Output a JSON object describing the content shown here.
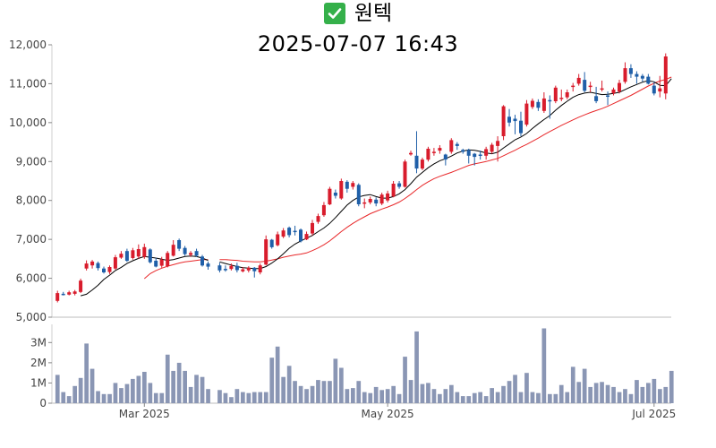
{
  "header": {
    "icon": "check-mark-icon",
    "title": "원텍",
    "subtitle": "2025-07-07 16:43"
  },
  "colors": {
    "up": "#d81c2c",
    "down": "#1f5fa8",
    "ma_short": "#000000",
    "ma_long": "#e8282a",
    "volume": "#8a96b4",
    "check": "#35b04a"
  },
  "chart_data": [
    {
      "type": "candlestick",
      "title": "",
      "xlabel": "",
      "ylabel": "",
      "ylim": [
        5000,
        12000
      ],
      "y_ticks": [
        "5,000",
        "6,000",
        "7,000",
        "8,000",
        "9,000",
        "10,000",
        "11,000",
        "12,000"
      ],
      "x_ticks": [
        "Mar 2025",
        "May 2025",
        "Jul 2025"
      ],
      "grid": false,
      "ohlc": [
        [
          5420,
          5620,
          5380,
          5680
        ],
        [
          5600,
          5590,
          5560,
          5650
        ],
        [
          5580,
          5640,
          5560,
          5680
        ],
        [
          5600,
          5660,
          5560,
          5700
        ],
        [
          5650,
          5940,
          5620,
          5990
        ],
        [
          6250,
          6380,
          6200,
          6460
        ],
        [
          6330,
          6430,
          6250,
          6470
        ],
        [
          6390,
          6260,
          6200,
          6430
        ],
        [
          6250,
          6150,
          6120,
          6300
        ],
        [
          6160,
          6290,
          6110,
          6330
        ],
        [
          6250,
          6540,
          6220,
          6600
        ],
        [
          6530,
          6630,
          6500,
          6700
        ],
        [
          6700,
          6450,
          6420,
          6760
        ],
        [
          6520,
          6720,
          6480,
          6780
        ],
        [
          6560,
          6750,
          6500,
          6870
        ],
        [
          6550,
          6800,
          6500,
          6890
        ],
        [
          6740,
          6410,
          6380,
          6770
        ],
        [
          6450,
          6300,
          6280,
          6530
        ],
        [
          6320,
          6480,
          6270,
          6550
        ],
        [
          6310,
          6650,
          6280,
          6700
        ],
        [
          6580,
          6860,
          6560,
          6980
        ],
        [
          6980,
          6760,
          6700,
          7020
        ],
        [
          6780,
          6620,
          6580,
          6830
        ],
        [
          6600,
          6650,
          6550,
          6700
        ],
        [
          6700,
          6580,
          6550,
          6760
        ],
        [
          6560,
          6330,
          6300,
          6600
        ],
        [
          6380,
          6300,
          6220,
          6430
        ],
        [
          6330,
          6200,
          6150,
          6400
        ],
        [
          6240,
          6230,
          6170,
          6330
        ],
        [
          6240,
          6320,
          6200,
          6380
        ],
        [
          6320,
          6210,
          6150,
          6400
        ],
        [
          6180,
          6230,
          6150,
          6290
        ],
        [
          6200,
          6270,
          6150,
          6310
        ],
        [
          6270,
          6180,
          6020,
          6290
        ],
        [
          6150,
          6330,
          6100,
          6380
        ],
        [
          6350,
          7000,
          6330,
          7100
        ],
        [
          6990,
          6800,
          6760,
          7010
        ],
        [
          6850,
          7130,
          6820,
          7200
        ],
        [
          7070,
          7230,
          7030,
          7290
        ],
        [
          7300,
          7110,
          7050,
          7330
        ],
        [
          7220,
          7200,
          7100,
          7350
        ],
        [
          7250,
          6950,
          6920,
          7280
        ],
        [
          7000,
          7140,
          6980,
          7200
        ],
        [
          7150,
          7420,
          7100,
          7500
        ],
        [
          7450,
          7600,
          7400,
          7660
        ],
        [
          7620,
          7880,
          7580,
          7960
        ],
        [
          7900,
          8300,
          7880,
          8350
        ],
        [
          8200,
          8120,
          8050,
          8280
        ],
        [
          8050,
          8500,
          8020,
          8560
        ],
        [
          8480,
          8300,
          8200,
          8520
        ],
        [
          8350,
          8450,
          8280,
          8500
        ],
        [
          8400,
          7900,
          7850,
          8440
        ],
        [
          7950,
          7950,
          7800,
          8050
        ],
        [
          7950,
          8040,
          7900,
          8100
        ],
        [
          8020,
          7920,
          7850,
          8080
        ],
        [
          7920,
          8150,
          7880,
          8200
        ],
        [
          8000,
          8180,
          7950,
          8250
        ],
        [
          8100,
          8430,
          8080,
          8500
        ],
        [
          8440,
          8350,
          8300,
          8500
        ],
        [
          8350,
          9000,
          8330,
          9050
        ],
        [
          9180,
          9220,
          9150,
          9280
        ],
        [
          9150,
          8820,
          8700,
          9780
        ],
        [
          8820,
          9050,
          8780,
          9100
        ],
        [
          9050,
          9330,
          9000,
          9380
        ],
        [
          9250,
          9250,
          9150,
          9350
        ],
        [
          9280,
          9350,
          9200,
          9420
        ],
        [
          9180,
          9050,
          8900,
          9200
        ],
        [
          9250,
          9550,
          9200,
          9600
        ],
        [
          9450,
          9400,
          9300,
          9500
        ],
        [
          9300,
          9250,
          9200,
          9330
        ],
        [
          9300,
          9150,
          8950,
          9330
        ],
        [
          9200,
          9120,
          8900,
          9220
        ],
        [
          9180,
          9150,
          9050,
          9280
        ],
        [
          9150,
          9320,
          9050,
          9380
        ],
        [
          9250,
          9430,
          9200,
          9480
        ],
        [
          9400,
          9530,
          9000,
          9650
        ],
        [
          9650,
          10420,
          9550,
          10450
        ],
        [
          10150,
          10000,
          9900,
          10350
        ],
        [
          10100,
          10040,
          9700,
          10200
        ],
        [
          10050,
          9730,
          9650,
          10280
        ],
        [
          9950,
          10490,
          9900,
          10580
        ],
        [
          10400,
          10560,
          10350,
          10620
        ],
        [
          10530,
          10380,
          10300,
          10600
        ],
        [
          10300,
          10620,
          10250,
          10780
        ],
        [
          10580,
          10560,
          10100,
          10700
        ],
        [
          10550,
          10900,
          10500,
          10950
        ],
        [
          10640,
          10640,
          10550,
          10850
        ],
        [
          10650,
          10780,
          10600,
          10850
        ],
        [
          10950,
          10950,
          10800,
          11020
        ],
        [
          11000,
          11150,
          10950,
          11250
        ],
        [
          11100,
          10820,
          10780,
          11300
        ],
        [
          10950,
          10950,
          10780,
          11050
        ],
        [
          10680,
          10550,
          10500,
          10920
        ],
        [
          10880,
          10880,
          10800,
          11080
        ],
        [
          10700,
          10680,
          10450,
          10800
        ],
        [
          10750,
          10850,
          10700,
          10900
        ],
        [
          10800,
          11020,
          10750,
          11100
        ],
        [
          11050,
          11400,
          11000,
          11550
        ],
        [
          11400,
          11250,
          11150,
          11500
        ],
        [
          11250,
          11180,
          11000,
          11320
        ],
        [
          11200,
          11130,
          11050,
          11250
        ],
        [
          11180,
          11000,
          10980,
          11250
        ],
        [
          10950,
          10750,
          10700,
          11050
        ],
        [
          10800,
          10880,
          10650,
          11200
        ],
        [
          10750,
          11700,
          10600,
          11780
        ]
      ],
      "ma_short_values": [
        null,
        null,
        null,
        null,
        5550,
        5590,
        5700,
        5820,
        5970,
        6080,
        6200,
        6280,
        6380,
        6450,
        6510,
        6560,
        6540,
        6520,
        6490,
        6460,
        6480,
        6520,
        6560,
        6570,
        6560,
        6520,
        6460,
        6420,
        6380,
        6340,
        6300,
        6270,
        6260,
        6250,
        6250,
        6300,
        6390,
        6500,
        6630,
        6770,
        6880,
        6960,
        7030,
        7100,
        7200,
        7290,
        7410,
        7560,
        7720,
        7880,
        8000,
        8090,
        8130,
        8150,
        8100,
        8060,
        8060,
        8100,
        8170,
        8280,
        8430,
        8600,
        8720,
        8840,
        8940,
        9020,
        9070,
        9140,
        9220,
        9270,
        9300,
        9290,
        9260,
        9220,
        9200,
        9240,
        9350,
        9450,
        9560,
        9630,
        9720,
        9850,
        9970,
        10080,
        10180,
        10320,
        10440,
        10550,
        10650,
        10720,
        10760,
        10780,
        10750,
        10720,
        10730,
        10750,
        10780,
        10850,
        10920,
        10980,
        11040,
        11080,
        11050,
        10960,
        10950,
        11130
      ],
      "ma_long_values": [
        null,
        null,
        null,
        null,
        null,
        null,
        null,
        null,
        null,
        null,
        null,
        null,
        null,
        null,
        null,
        5990,
        6120,
        6200,
        6260,
        6310,
        6350,
        6390,
        6420,
        6440,
        6460,
        6480,
        6480,
        6480,
        6480,
        6470,
        6460,
        6440,
        6430,
        6420,
        6420,
        6440,
        6470,
        6500,
        6540,
        6570,
        6600,
        6620,
        6650,
        6710,
        6780,
        6860,
        6960,
        7080,
        7200,
        7310,
        7410,
        7500,
        7580,
        7660,
        7720,
        7780,
        7830,
        7890,
        7960,
        8050,
        8160,
        8280,
        8390,
        8480,
        8560,
        8620,
        8670,
        8720,
        8780,
        8840,
        8900,
        8940,
        8970,
        9000,
        9040,
        9080,
        9150,
        9220,
        9290,
        9370,
        9440,
        9520,
        9600,
        9690,
        9770,
        9850,
        9930,
        10000,
        10070,
        10140,
        10200,
        10260,
        10310,
        10360,
        10420,
        10490,
        10560,
        10630,
        10700,
        10780,
        10860,
        10940,
        11010,
        11070,
        11110,
        11170
      ],
      "gaps_after": [
        26
      ]
    },
    {
      "type": "bar",
      "title": "",
      "xlabel": "",
      "ylabel": "",
      "ylim": [
        0,
        3900000
      ],
      "y_ticks": [
        "0",
        "1M",
        "2M",
        "3M"
      ],
      "values": [
        1400000,
        550000,
        350000,
        850000,
        1250000,
        2950000,
        1700000,
        600000,
        450000,
        450000,
        1000000,
        750000,
        950000,
        1200000,
        1350000,
        1550000,
        1000000,
        500000,
        500000,
        2400000,
        1600000,
        2000000,
        1600000,
        800000,
        1400000,
        1300000,
        700000,
        650000,
        500000,
        300000,
        700000,
        550000,
        500000,
        550000,
        550000,
        550000,
        2250000,
        2800000,
        1300000,
        1850000,
        1100000,
        850000,
        700000,
        850000,
        1150000,
        1100000,
        1100000,
        2200000,
        1750000,
        700000,
        750000,
        1100000,
        550000,
        500000,
        800000,
        650000,
        700000,
        850000,
        450000,
        2300000,
        1150000,
        3550000,
        950000,
        1000000,
        700000,
        450000,
        700000,
        900000,
        550000,
        350000,
        350000,
        500000,
        550000,
        350000,
        750000,
        550000,
        850000,
        1100000,
        1400000,
        550000,
        1500000,
        550000,
        500000,
        3700000,
        450000,
        450000,
        900000,
        550000,
        1800000,
        1050000,
        1700000,
        800000,
        1000000,
        1050000,
        900000,
        800000,
        550000,
        700000,
        450000,
        1150000,
        800000,
        1000000,
        1200000,
        700000,
        800000,
        1600000
      ]
    }
  ]
}
